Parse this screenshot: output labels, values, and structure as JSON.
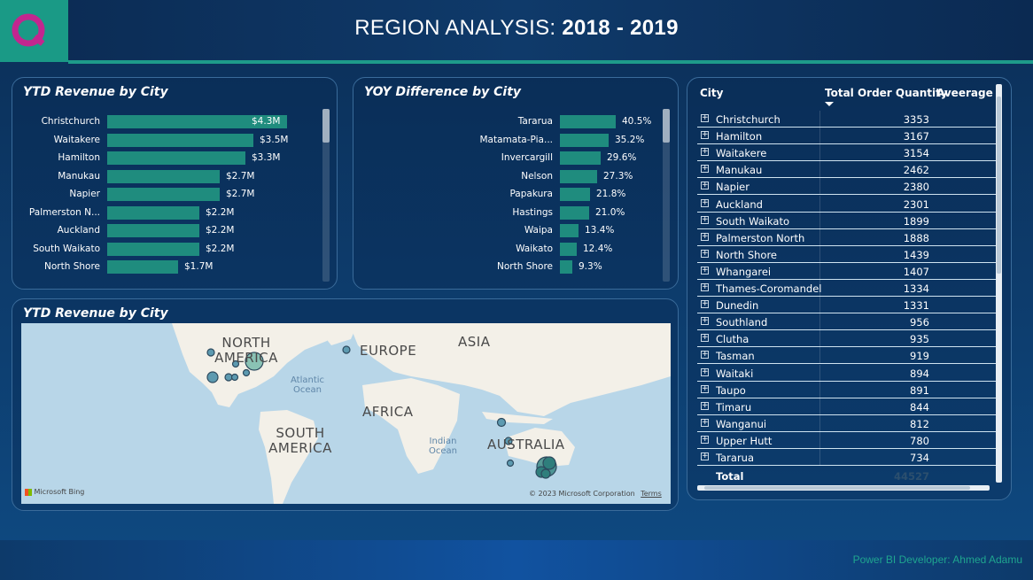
{
  "header": {
    "title": "REGION ANALYSIS:",
    "years": "2018 - 2019"
  },
  "ytd_chart": {
    "title": "YTD Revenue by City",
    "max_value": 4.3,
    "bars": [
      {
        "label": "Christchurch",
        "value": 4.3,
        "text": "$4.3M"
      },
      {
        "label": "Waitakere",
        "value": 3.5,
        "text": "$3.5M"
      },
      {
        "label": "Hamilton",
        "value": 3.3,
        "text": "$3.3M"
      },
      {
        "label": "Manukau",
        "value": 2.7,
        "text": "$2.7M"
      },
      {
        "label": "Napier",
        "value": 2.7,
        "text": "$2.7M"
      },
      {
        "label": "Palmerston N...",
        "value": 2.2,
        "text": "$2.2M"
      },
      {
        "label": "Auckland",
        "value": 2.2,
        "text": "$2.2M"
      },
      {
        "label": "South Waikato",
        "value": 2.2,
        "text": "$2.2M"
      },
      {
        "label": "North Shore",
        "value": 1.7,
        "text": "$1.7M"
      }
    ]
  },
  "yoy_chart": {
    "title": "YOY Difference by City",
    "max_value": 40.5,
    "bars": [
      {
        "label": "Tararua",
        "value": 40.5,
        "text": "40.5%"
      },
      {
        "label": "Matamata-Pia...",
        "value": 35.2,
        "text": "35.2%"
      },
      {
        "label": "Invercargill",
        "value": 29.6,
        "text": "29.6%"
      },
      {
        "label": "Nelson",
        "value": 27.3,
        "text": "27.3%"
      },
      {
        "label": "Papakura",
        "value": 21.8,
        "text": "21.8%"
      },
      {
        "label": "Hastings",
        "value": 21.0,
        "text": "21.0%"
      },
      {
        "label": "Waipa",
        "value": 13.4,
        "text": "13.4%"
      },
      {
        "label": "Waikato",
        "value": 12.4,
        "text": "12.4%"
      },
      {
        "label": "North Shore",
        "value": 9.3,
        "text": "9.3%"
      }
    ]
  },
  "chart_data": [
    {
      "type": "bar",
      "title": "YTD Revenue by City",
      "categories": [
        "Christchurch",
        "Waitakere",
        "Hamilton",
        "Manukau",
        "Napier",
        "Palmerston N...",
        "Auckland",
        "South Waikato",
        "North Shore"
      ],
      "values": [
        4.3,
        3.5,
        3.3,
        2.7,
        2.7,
        2.2,
        2.2,
        2.2,
        1.7
      ]
    },
    {
      "type": "bar",
      "title": "YOY Difference by City",
      "categories": [
        "Tararua",
        "Matamata-Pia...",
        "Invercargill",
        "Nelson",
        "Papakura",
        "Hastings",
        "Waipa",
        "Waikato",
        "North Shore"
      ],
      "values": [
        40.5,
        35.2,
        29.6,
        27.3,
        21.8,
        21.0,
        13.4,
        12.4,
        9.3
      ]
    }
  ],
  "map": {
    "title": "YTD Revenue by City",
    "labels": {
      "north_america": "NORTH\nAMERICA",
      "europe": "EUROPE",
      "asia": "ASIA",
      "africa": "AFRICA",
      "south_america": "SOUTH\nAMERICA",
      "australia": "AUSTRALIA",
      "atlantic": "Atlantic\nOcean",
      "indian": "Indian\nOcean"
    },
    "brand": "Microsoft Bing",
    "copyright": "© 2023 Microsoft Corporation",
    "terms": "Terms"
  },
  "table": {
    "headers": [
      "City",
      "Total Order Quantity",
      "Aveerage O"
    ],
    "rows": [
      {
        "city": "Christchurch",
        "qty": "3353"
      },
      {
        "city": "Hamilton",
        "qty": "3167"
      },
      {
        "city": "Waitakere",
        "qty": "3154"
      },
      {
        "city": "Manukau",
        "qty": "2462"
      },
      {
        "city": "Napier",
        "qty": "2380"
      },
      {
        "city": "Auckland",
        "qty": "2301"
      },
      {
        "city": "South Waikato",
        "qty": "1899"
      },
      {
        "city": "Palmerston North",
        "qty": "1888"
      },
      {
        "city": "North Shore",
        "qty": "1439"
      },
      {
        "city": "Whangarei",
        "qty": "1407"
      },
      {
        "city": "Thames-Coromandel",
        "qty": "1334"
      },
      {
        "city": "Dunedin",
        "qty": "1331"
      },
      {
        "city": "Southland",
        "qty": "956"
      },
      {
        "city": "Clutha",
        "qty": "935"
      },
      {
        "city": "Tasman",
        "qty": "919"
      },
      {
        "city": "Waitaki",
        "qty": "894"
      },
      {
        "city": "Taupo",
        "qty": "891"
      },
      {
        "city": "Timaru",
        "qty": "844"
      },
      {
        "city": "Wanganui",
        "qty": "812"
      },
      {
        "city": "Upper Hutt",
        "qty": "780"
      },
      {
        "city": "Tararua",
        "qty": "734"
      }
    ],
    "total_label": "Total",
    "total_value": "44527"
  },
  "footer": {
    "credit": "Power BI Developer: Ahmed Adamu"
  },
  "colors": {
    "accent": "#1f8c7e",
    "logo_magenta": "#c2268f",
    "footer_text": "#1fa58f"
  }
}
